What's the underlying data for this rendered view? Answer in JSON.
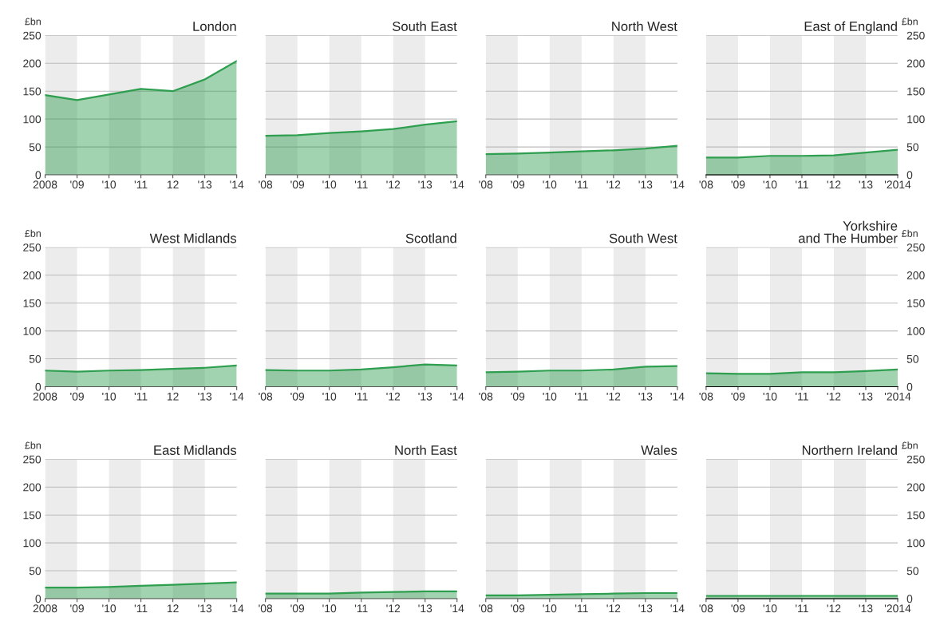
{
  "chart_data": [
    {
      "type": "area",
      "title": "London",
      "ylabel": "£bn",
      "x": [
        2008,
        2009,
        2010,
        2011,
        2012,
        2013,
        2014
      ],
      "xlim": [
        2008,
        2014
      ],
      "xticks": [
        {
          "value": 2008,
          "label": "2008"
        },
        {
          "value": 2009,
          "label": "'09"
        },
        {
          "value": 2010,
          "label": "'10"
        },
        {
          "value": 2011,
          "label": "'11"
        },
        {
          "value": 2012,
          "label": "12"
        },
        {
          "value": 2013,
          "label": "'13"
        },
        {
          "value": 2014,
          "label": "'14"
        }
      ],
      "ylim": [
        0,
        250
      ],
      "yticks": [
        0,
        50,
        100,
        150,
        200,
        250
      ],
      "grid": "y",
      "bands": [
        {
          "axis": "x",
          "from": 2008,
          "to": 2009,
          "color": "#ececec"
        },
        {
          "axis": "x",
          "from": 2010,
          "to": 2011,
          "color": "#ececec"
        },
        {
          "axis": "x",
          "from": 2012,
          "to": 2013,
          "color": "#ececec"
        }
      ],
      "series": [
        {
          "color": "#2e9e4f",
          "values": [
            143,
            134,
            144,
            154,
            150,
            171,
            204
          ]
        }
      ]
    },
    {
      "type": "area",
      "title": "South East",
      "x": [
        2008,
        2009,
        2010,
        2011,
        2012,
        2013,
        2014
      ],
      "xlim": [
        2008,
        2014
      ],
      "xticks": [
        {
          "value": 2008,
          "label": "'08"
        },
        {
          "value": 2009,
          "label": "'09"
        },
        {
          "value": 2010,
          "label": "'10"
        },
        {
          "value": 2011,
          "label": "'11"
        },
        {
          "value": 2012,
          "label": "'12"
        },
        {
          "value": 2013,
          "label": "'13"
        },
        {
          "value": 2014,
          "label": "'14"
        }
      ],
      "ylim": [
        0,
        250
      ],
      "yticks": [
        0,
        50,
        100,
        150,
        200,
        250
      ],
      "tick_labels": "x",
      "grid": "y",
      "bands": [
        {
          "axis": "x",
          "from": 2008,
          "to": 2009,
          "color": "#ececec"
        },
        {
          "axis": "x",
          "from": 2010,
          "to": 2011,
          "color": "#ececec"
        },
        {
          "axis": "x",
          "from": 2012,
          "to": 2013,
          "color": "#ececec"
        }
      ],
      "series": [
        {
          "color": "#2e9e4f",
          "values": [
            70,
            71,
            75,
            78,
            82,
            90,
            96
          ]
        }
      ]
    },
    {
      "type": "area",
      "title": "North West",
      "x": [
        2008,
        2009,
        2010,
        2011,
        2012,
        2013,
        2014
      ],
      "xlim": [
        2008,
        2014
      ],
      "xticks": [
        {
          "value": 2008,
          "label": "'08"
        },
        {
          "value": 2009,
          "label": "'09"
        },
        {
          "value": 2010,
          "label": "'10"
        },
        {
          "value": 2011,
          "label": "'11"
        },
        {
          "value": 2012,
          "label": "'12"
        },
        {
          "value": 2013,
          "label": "'13"
        },
        {
          "value": 2014,
          "label": "'14"
        }
      ],
      "ylim": [
        0,
        250
      ],
      "yticks": [
        0,
        50,
        100,
        150,
        200,
        250
      ],
      "tick_labels": "x",
      "grid": "y",
      "bands": [
        {
          "axis": "x",
          "from": 2008,
          "to": 2009,
          "color": "#ececec"
        },
        {
          "axis": "x",
          "from": 2010,
          "to": 2011,
          "color": "#ececec"
        },
        {
          "axis": "x",
          "from": 2012,
          "to": 2013,
          "color": "#ececec"
        }
      ],
      "series": [
        {
          "color": "#2e9e4f",
          "values": [
            37,
            38,
            40,
            42,
            44,
            47,
            52
          ]
        }
      ]
    },
    {
      "type": "area",
      "title": "East of England",
      "y2label": "£bn",
      "x": [
        2008,
        2009,
        2010,
        2011,
        2012,
        2013,
        2014
      ],
      "xlim": [
        2008,
        2014
      ],
      "xticks": [
        {
          "value": 2008,
          "label": "'08"
        },
        {
          "value": 2009,
          "label": "'09"
        },
        {
          "value": 2010,
          "label": "'10"
        },
        {
          "value": 2011,
          "label": "'11"
        },
        {
          "value": 2012,
          "label": "'12"
        },
        {
          "value": 2013,
          "label": "'13"
        },
        {
          "value": 2014,
          "label": "'2014"
        }
      ],
      "y2lim": [
        0,
        250
      ],
      "y2ticks": [
        0,
        50,
        100,
        150,
        200,
        250
      ],
      "grid": "y",
      "bands": [
        {
          "axis": "x",
          "from": 2008,
          "to": 2009,
          "color": "#ececec"
        },
        {
          "axis": "x",
          "from": 2010,
          "to": 2011,
          "color": "#ececec"
        },
        {
          "axis": "x",
          "from": 2012,
          "to": 2013,
          "color": "#ececec"
        }
      ],
      "series": [
        {
          "color": "#2e9e4f",
          "axis": "y2",
          "values": [
            31,
            31,
            34,
            34,
            35,
            40,
            45
          ]
        }
      ]
    },
    {
      "type": "area",
      "title": "West Midlands",
      "ylabel": "£bn",
      "x": [
        2008,
        2009,
        2010,
        2011,
        2012,
        2013,
        2014
      ],
      "xlim": [
        2008,
        2014
      ],
      "xticks": [
        {
          "value": 2008,
          "label": "2008"
        },
        {
          "value": 2009,
          "label": "'09"
        },
        {
          "value": 2010,
          "label": "'10"
        },
        {
          "value": 2011,
          "label": "'11"
        },
        {
          "value": 2012,
          "label": "12"
        },
        {
          "value": 2013,
          "label": "'13"
        },
        {
          "value": 2014,
          "label": "'14"
        }
      ],
      "ylim": [
        0,
        250
      ],
      "yticks": [
        0,
        50,
        100,
        150,
        200,
        250
      ],
      "grid": "y",
      "bands": [
        {
          "axis": "x",
          "from": 2008,
          "to": 2009,
          "color": "#ececec"
        },
        {
          "axis": "x",
          "from": 2010,
          "to": 2011,
          "color": "#ececec"
        },
        {
          "axis": "x",
          "from": 2012,
          "to": 2013,
          "color": "#ececec"
        }
      ],
      "series": [
        {
          "color": "#2e9e4f",
          "values": [
            29,
            27,
            29,
            30,
            32,
            34,
            38
          ]
        }
      ]
    },
    {
      "type": "area",
      "title": "Scotland",
      "x": [
        2008,
        2009,
        2010,
        2011,
        2012,
        2013,
        2014
      ],
      "xlim": [
        2008,
        2014
      ],
      "xticks": [
        {
          "value": 2008,
          "label": "'08"
        },
        {
          "value": 2009,
          "label": "'09"
        },
        {
          "value": 2010,
          "label": "'10"
        },
        {
          "value": 2011,
          "label": "'11"
        },
        {
          "value": 2012,
          "label": "'12"
        },
        {
          "value": 2013,
          "label": "'13"
        },
        {
          "value": 2014,
          "label": "'14"
        }
      ],
      "ylim": [
        0,
        250
      ],
      "yticks": [
        0,
        50,
        100,
        150,
        200,
        250
      ],
      "tick_labels": "x",
      "grid": "y",
      "bands": [
        {
          "axis": "x",
          "from": 2008,
          "to": 2009,
          "color": "#ececec"
        },
        {
          "axis": "x",
          "from": 2010,
          "to": 2011,
          "color": "#ececec"
        },
        {
          "axis": "x",
          "from": 2012,
          "to": 2013,
          "color": "#ececec"
        }
      ],
      "series": [
        {
          "color": "#2e9e4f",
          "values": [
            30,
            29,
            29,
            31,
            35,
            40,
            38
          ]
        }
      ]
    },
    {
      "type": "area",
      "title": "South West",
      "x": [
        2008,
        2009,
        2010,
        2011,
        2012,
        2013,
        2014
      ],
      "xlim": [
        2008,
        2014
      ],
      "xticks": [
        {
          "value": 2008,
          "label": "'08"
        },
        {
          "value": 2009,
          "label": "'09"
        },
        {
          "value": 2010,
          "label": "'10"
        },
        {
          "value": 2011,
          "label": "'11"
        },
        {
          "value": 2012,
          "label": "'12"
        },
        {
          "value": 2013,
          "label": "'13"
        },
        {
          "value": 2014,
          "label": "'14"
        }
      ],
      "ylim": [
        0,
        250
      ],
      "yticks": [
        0,
        50,
        100,
        150,
        200,
        250
      ],
      "tick_labels": "x",
      "grid": "y",
      "bands": [
        {
          "axis": "x",
          "from": 2008,
          "to": 2009,
          "color": "#ececec"
        },
        {
          "axis": "x",
          "from": 2010,
          "to": 2011,
          "color": "#ececec"
        },
        {
          "axis": "x",
          "from": 2012,
          "to": 2013,
          "color": "#ececec"
        }
      ],
      "series": [
        {
          "color": "#2e9e4f",
          "values": [
            26,
            27,
            29,
            29,
            31,
            36,
            37
          ]
        }
      ]
    },
    {
      "type": "area",
      "title": "Yorkshire\nand The Humber",
      "y2label": "£bn",
      "x": [
        2008,
        2009,
        2010,
        2011,
        2012,
        2013,
        2014
      ],
      "xlim": [
        2008,
        2014
      ],
      "xticks": [
        {
          "value": 2008,
          "label": "'08"
        },
        {
          "value": 2009,
          "label": "'09"
        },
        {
          "value": 2010,
          "label": "'10"
        },
        {
          "value": 2011,
          "label": "'11"
        },
        {
          "value": 2012,
          "label": "'12"
        },
        {
          "value": 2013,
          "label": "'13"
        },
        {
          "value": 2014,
          "label": "'2014"
        }
      ],
      "y2lim": [
        0,
        250
      ],
      "y2ticks": [
        0,
        50,
        100,
        150,
        200,
        250
      ],
      "grid": "y",
      "bands": [
        {
          "axis": "x",
          "from": 2008,
          "to": 2009,
          "color": "#ececec"
        },
        {
          "axis": "x",
          "from": 2010,
          "to": 2011,
          "color": "#ececec"
        },
        {
          "axis": "x",
          "from": 2012,
          "to": 2013,
          "color": "#ececec"
        }
      ],
      "series": [
        {
          "color": "#2e9e4f",
          "axis": "y2",
          "values": [
            24,
            23,
            23,
            26,
            26,
            28,
            31
          ]
        }
      ]
    },
    {
      "type": "area",
      "title": "East Midlands",
      "ylabel": "£bn",
      "x": [
        2008,
        2009,
        2010,
        2011,
        2012,
        2013,
        2014
      ],
      "xlim": [
        2008,
        2014
      ],
      "xticks": [
        {
          "value": 2008,
          "label": "2008"
        },
        {
          "value": 2009,
          "label": "'09"
        },
        {
          "value": 2010,
          "label": "'10"
        },
        {
          "value": 2011,
          "label": "'11"
        },
        {
          "value": 2012,
          "label": "12"
        },
        {
          "value": 2013,
          "label": "'13"
        },
        {
          "value": 2014,
          "label": "'14"
        }
      ],
      "ylim": [
        0,
        250
      ],
      "yticks": [
        0,
        50,
        100,
        150,
        200,
        250
      ],
      "grid": "y",
      "bands": [
        {
          "axis": "x",
          "from": 2008,
          "to": 2009,
          "color": "#ececec"
        },
        {
          "axis": "x",
          "from": 2010,
          "to": 2011,
          "color": "#ececec"
        },
        {
          "axis": "x",
          "from": 2012,
          "to": 2013,
          "color": "#ececec"
        }
      ],
      "series": [
        {
          "color": "#2e9e4f",
          "values": [
            20,
            20,
            21,
            23,
            25,
            27,
            29
          ]
        }
      ]
    },
    {
      "type": "area",
      "title": "North East",
      "x": [
        2008,
        2009,
        2010,
        2011,
        2012,
        2013,
        2014
      ],
      "xlim": [
        2008,
        2014
      ],
      "xticks": [
        {
          "value": 2008,
          "label": "'08"
        },
        {
          "value": 2009,
          "label": "'09"
        },
        {
          "value": 2010,
          "label": "'10"
        },
        {
          "value": 2011,
          "label": "'11"
        },
        {
          "value": 2012,
          "label": "'12"
        },
        {
          "value": 2013,
          "label": "'13"
        },
        {
          "value": 2014,
          "label": "'14"
        }
      ],
      "ylim": [
        0,
        250
      ],
      "yticks": [
        0,
        50,
        100,
        150,
        200,
        250
      ],
      "tick_labels": "x",
      "grid": "y",
      "bands": [
        {
          "axis": "x",
          "from": 2008,
          "to": 2009,
          "color": "#ececec"
        },
        {
          "axis": "x",
          "from": 2010,
          "to": 2011,
          "color": "#ececec"
        },
        {
          "axis": "x",
          "from": 2012,
          "to": 2013,
          "color": "#ececec"
        }
      ],
      "series": [
        {
          "color": "#2e9e4f",
          "values": [
            9,
            9,
            9,
            11,
            12,
            13,
            13
          ]
        }
      ]
    },
    {
      "type": "area",
      "title": "Wales",
      "x": [
        2008,
        2009,
        2010,
        2011,
        2012,
        2013,
        2014
      ],
      "xlim": [
        2008,
        2014
      ],
      "xticks": [
        {
          "value": 2008,
          "label": "'08"
        },
        {
          "value": 2009,
          "label": "'09"
        },
        {
          "value": 2010,
          "label": "'10"
        },
        {
          "value": 2011,
          "label": "'11"
        },
        {
          "value": 2012,
          "label": "'12"
        },
        {
          "value": 2013,
          "label": "'13"
        },
        {
          "value": 2014,
          "label": "'14"
        }
      ],
      "ylim": [
        0,
        250
      ],
      "yticks": [
        0,
        50,
        100,
        150,
        200,
        250
      ],
      "tick_labels": "x",
      "grid": "y",
      "bands": [
        {
          "axis": "x",
          "from": 2008,
          "to": 2009,
          "color": "#ececec"
        },
        {
          "axis": "x",
          "from": 2010,
          "to": 2011,
          "color": "#ececec"
        },
        {
          "axis": "x",
          "from": 2012,
          "to": 2013,
          "color": "#ececec"
        }
      ],
      "series": [
        {
          "color": "#2e9e4f",
          "values": [
            6,
            6,
            7,
            8,
            9,
            10,
            10
          ]
        }
      ]
    },
    {
      "type": "area",
      "title": "Northern Ireland",
      "y2label": "£bn",
      "x": [
        2008,
        2009,
        2010,
        2011,
        2012,
        2013,
        2014
      ],
      "xlim": [
        2008,
        2014
      ],
      "xticks": [
        {
          "value": 2008,
          "label": "'08"
        },
        {
          "value": 2009,
          "label": "'09"
        },
        {
          "value": 2010,
          "label": "'10"
        },
        {
          "value": 2011,
          "label": "'11"
        },
        {
          "value": 2012,
          "label": "'12"
        },
        {
          "value": 2013,
          "label": "'13"
        },
        {
          "value": 2014,
          "label": "'2014"
        }
      ],
      "y2lim": [
        0,
        250
      ],
      "y2ticks": [
        0,
        50,
        100,
        150,
        200,
        250
      ],
      "grid": "y",
      "bands": [
        {
          "axis": "x",
          "from": 2008,
          "to": 2009,
          "color": "#ececec"
        },
        {
          "axis": "x",
          "from": 2010,
          "to": 2011,
          "color": "#ececec"
        },
        {
          "axis": "x",
          "from": 2012,
          "to": 2013,
          "color": "#ececec"
        }
      ],
      "series": [
        {
          "color": "#2e9e4f",
          "axis": "y2",
          "values": [
            5,
            5,
            5,
            5,
            5,
            5,
            5
          ]
        }
      ]
    }
  ]
}
